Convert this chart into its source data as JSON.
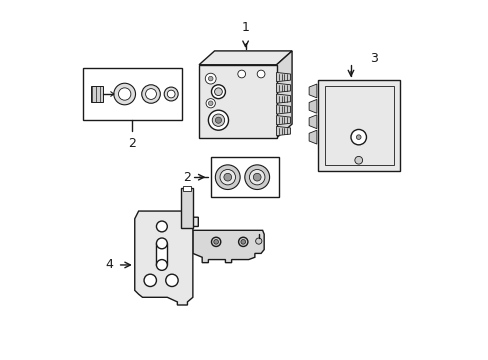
{
  "background_color": "#ffffff",
  "line_color": "#1a1a1a",
  "line_width": 1.0,
  "thin_line": 0.6,
  "fig_width": 4.89,
  "fig_height": 3.6,
  "dpi": 100
}
